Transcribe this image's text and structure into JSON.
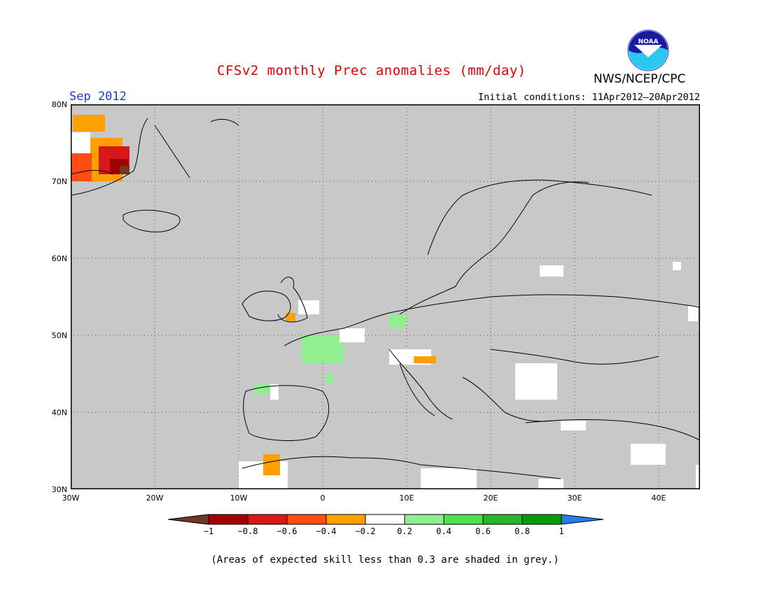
{
  "title": "CFSv2 monthly Prec anomalies (mm/day)",
  "month": "Sep 2012",
  "initial_conditions": "Initial conditions: 11Apr2012–20Apr2012",
  "agency": "NWS/NCEP/CPC",
  "logo": {
    "text": "NOAA",
    "icon": "noaa-logo-icon"
  },
  "map": {
    "lon_range": [
      -30,
      45
    ],
    "lat_range": [
      30,
      80
    ],
    "background_color": "#c8c8c8",
    "grid": "dotted",
    "lat_labels": [
      "80N",
      "70N",
      "60N",
      "50N",
      "40N",
      "30N"
    ],
    "lon_labels": [
      "30W",
      "20W",
      "10W",
      "0",
      "10E",
      "20E",
      "30E",
      "40E"
    ]
  },
  "colorbar": {
    "tick_labels": [
      "−1",
      "−0.8",
      "−0.6",
      "−0.4",
      "−0.2",
      "0.2",
      "0.4",
      "0.6",
      "0.8",
      "1"
    ],
    "colors": [
      "#6e3a22",
      "#a00000",
      "#d81818",
      "#ff4c14",
      "#ffa000",
      "#ffffff",
      "#90ee90",
      "#50e050",
      "#28b428",
      "#0a9a0a",
      "#2a7ae6"
    ]
  },
  "note": "(Areas of expected skill less than 0.3 are shaded in grey.)"
}
